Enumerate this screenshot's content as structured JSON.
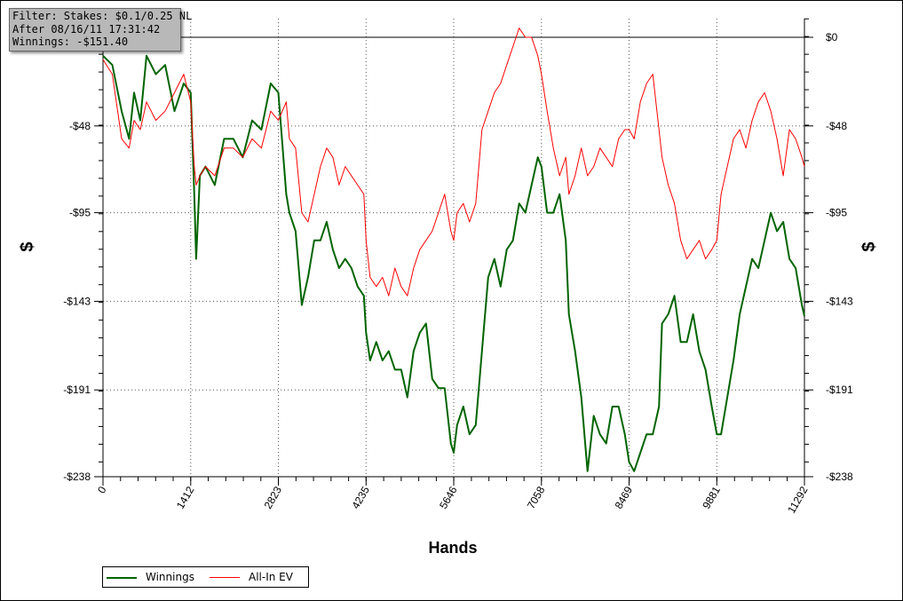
{
  "filter_box": {
    "line1": "Filter: Stakes: $0.1/0.25 NL",
    "line2": "After 08/16/11 17:31:42",
    "line3": "Winnings: -$151.40"
  },
  "chart_data": {
    "type": "line",
    "title": "",
    "xlabel": "Hands",
    "ylabel": "$",
    "xlim": [
      0,
      11292
    ],
    "ylim": [
      -238,
      10
    ],
    "x_ticks": [
      0,
      1412,
      2823,
      4235,
      5646,
      7058,
      8469,
      9881,
      11292
    ],
    "x_tick_labels": [
      "0",
      "1412",
      "2823",
      "4235",
      "5646",
      "7058",
      "8469",
      "9881",
      "11292"
    ],
    "y_ticks": [
      0,
      -48,
      -95,
      -143,
      -191,
      -238
    ],
    "y_tick_labels": [
      "$0",
      "-$48",
      "-$95",
      "-$143",
      "-$191",
      "-$238"
    ],
    "grid": true,
    "legend_position": "bottom-left",
    "series": [
      {
        "name": "Winnings",
        "color": "#006400",
        "x": [
          0,
          150,
          300,
          420,
          500,
          600,
          700,
          850,
          1000,
          1150,
          1300,
          1412,
          1470,
          1500,
          1560,
          1650,
          1800,
          1950,
          2100,
          2250,
          2400,
          2550,
          2700,
          2823,
          2950,
          3000,
          3100,
          3200,
          3300,
          3400,
          3500,
          3600,
          3700,
          3800,
          3900,
          4000,
          4100,
          4200,
          4235,
          4300,
          4400,
          4500,
          4600,
          4700,
          4800,
          4900,
          5000,
          5100,
          5200,
          5300,
          5400,
          5500,
          5600,
          5646,
          5700,
          5800,
          5900,
          6000,
          6100,
          6200,
          6300,
          6400,
          6500,
          6600,
          6700,
          6800,
          6900,
          7000,
          7058,
          7150,
          7250,
          7350,
          7450,
          7500,
          7600,
          7700,
          7800,
          7900,
          8000,
          8100,
          8200,
          8300,
          8400,
          8469,
          8550,
          8650,
          8750,
          8850,
          8950,
          9000,
          9100,
          9200,
          9300,
          9400,
          9500,
          9600,
          9700,
          9800,
          9881,
          9950,
          10050,
          10150,
          10250,
          10350,
          10450,
          10550,
          10650,
          10750,
          10850,
          10950,
          11050,
          11150,
          11250,
          11292
        ],
        "y": [
          -10,
          -15,
          -40,
          -55,
          -30,
          -45,
          -10,
          -20,
          -15,
          -40,
          -25,
          -30,
          -85,
          -120,
          -75,
          -70,
          -80,
          -55,
          -55,
          -65,
          -45,
          -50,
          -25,
          -30,
          -85,
          -95,
          -105,
          -145,
          -130,
          -110,
          -110,
          -100,
          -115,
          -125,
          -120,
          -125,
          -135,
          -140,
          -160,
          -175,
          -165,
          -175,
          -170,
          -180,
          -180,
          -195,
          -170,
          -160,
          -155,
          -185,
          -190,
          -190,
          -220,
          -225,
          -210,
          -200,
          -215,
          -210,
          -170,
          -130,
          -120,
          -135,
          -115,
          -110,
          -90,
          -95,
          -80,
          -65,
          -70,
          -95,
          -95,
          -85,
          -110,
          -150,
          -170,
          -195,
          -235,
          -205,
          -215,
          -220,
          -200,
          -200,
          -215,
          -230,
          -235,
          -225,
          -215,
          -215,
          -200,
          -155,
          -150,
          -140,
          -165,
          -165,
          -150,
          -170,
          -180,
          -200,
          -215,
          -215,
          -195,
          -175,
          -150,
          -135,
          -120,
          -125,
          -110,
          -95,
          -105,
          -100,
          -120,
          -125,
          -145,
          -151
        ]
      },
      {
        "name": "All-In EV",
        "color": "#ff0000",
        "x": [
          0,
          150,
          300,
          420,
          500,
          600,
          700,
          850,
          1000,
          1150,
          1300,
          1412,
          1470,
          1500,
          1560,
          1650,
          1800,
          1950,
          2100,
          2250,
          2400,
          2550,
          2700,
          2823,
          2950,
          3000,
          3100,
          3200,
          3300,
          3400,
          3500,
          3600,
          3700,
          3800,
          3900,
          4000,
          4100,
          4200,
          4235,
          4300,
          4400,
          4500,
          4600,
          4700,
          4800,
          4900,
          5000,
          5100,
          5200,
          5300,
          5400,
          5500,
          5600,
          5646,
          5700,
          5800,
          5900,
          6000,
          6100,
          6200,
          6300,
          6400,
          6500,
          6600,
          6700,
          6800,
          6900,
          7000,
          7058,
          7150,
          7250,
          7350,
          7450,
          7500,
          7600,
          7700,
          7800,
          7900,
          8000,
          8100,
          8200,
          8300,
          8400,
          8469,
          8550,
          8650,
          8750,
          8850,
          8950,
          9000,
          9100,
          9200,
          9300,
          9400,
          9500,
          9600,
          9700,
          9800,
          9881,
          9950,
          10050,
          10150,
          10250,
          10350,
          10450,
          10550,
          10650,
          10750,
          10850,
          10950,
          11050,
          11150,
          11250,
          11292
        ],
        "y": [
          -12,
          -20,
          -55,
          -60,
          -45,
          -50,
          -35,
          -45,
          -40,
          -30,
          -20,
          -35,
          -70,
          -80,
          -75,
          -70,
          -75,
          -60,
          -60,
          -65,
          -55,
          -60,
          -40,
          -45,
          -35,
          -55,
          -60,
          -95,
          -100,
          -85,
          -70,
          -60,
          -65,
          -80,
          -70,
          -75,
          -80,
          -85,
          -110,
          -130,
          -135,
          -130,
          -140,
          -125,
          -135,
          -140,
          -125,
          -115,
          -110,
          -105,
          -95,
          -85,
          -105,
          -110,
          -95,
          -90,
          -100,
          -90,
          -50,
          -40,
          -30,
          -25,
          -15,
          -5,
          5,
          0,
          0,
          -10,
          -20,
          -40,
          -60,
          -75,
          -65,
          -85,
          -75,
          -60,
          -75,
          -70,
          -60,
          -65,
          -70,
          -55,
          -50,
          -50,
          -55,
          -35,
          -25,
          -20,
          -50,
          -65,
          -80,
          -90,
          -110,
          -120,
          -115,
          -110,
          -120,
          -115,
          -110,
          -85,
          -70,
          -55,
          -50,
          -60,
          -45,
          -35,
          -30,
          -40,
          -55,
          -75,
          -50,
          -55,
          -65,
          -70
        ]
      }
    ]
  },
  "legend": {
    "items": [
      "Winnings",
      "All-In EV"
    ]
  }
}
